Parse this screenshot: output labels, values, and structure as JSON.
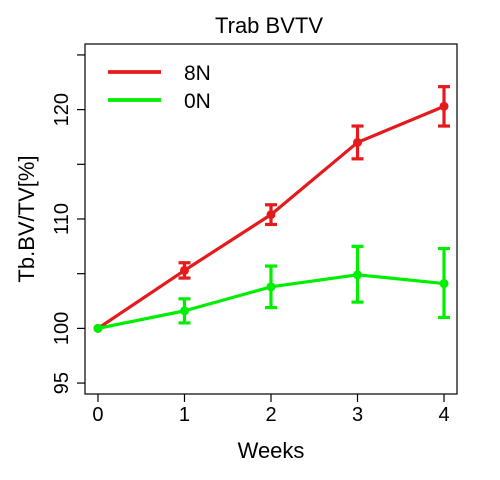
{
  "chart_data": {
    "type": "line",
    "title": "Trab BVTV",
    "xlabel": "Weeks",
    "ylabel": "Tb.BV/TV[%]",
    "x": [
      0,
      1,
      2,
      3,
      4
    ],
    "xlim": [
      -0.15,
      4.15
    ],
    "ylim": [
      94,
      126
    ],
    "x_ticks": [
      "0",
      "1",
      "2",
      "3",
      "4"
    ],
    "y_ticks": [
      95,
      100,
      110,
      120
    ],
    "y_tick_labels": [
      "95",
      "100",
      "110",
      "120"
    ],
    "grid": false,
    "legend": "top-left",
    "series": [
      {
        "name": "8N",
        "color": "#e41a1c",
        "values": [
          100.0,
          105.3,
          110.4,
          117.0,
          120.3
        ],
        "error_low": [
          100.0,
          104.6,
          109.5,
          115.5,
          118.5
        ],
        "error_high": [
          100.0,
          106.0,
          111.3,
          118.5,
          122.1
        ]
      },
      {
        "name": "0N",
        "color": "#00ee00",
        "values": [
          100.0,
          101.6,
          103.8,
          104.9,
          104.1
        ],
        "error_low": [
          100.0,
          100.5,
          101.9,
          102.4,
          101.0
        ],
        "error_high": [
          100.0,
          102.7,
          105.7,
          107.5,
          107.3
        ]
      }
    ]
  }
}
